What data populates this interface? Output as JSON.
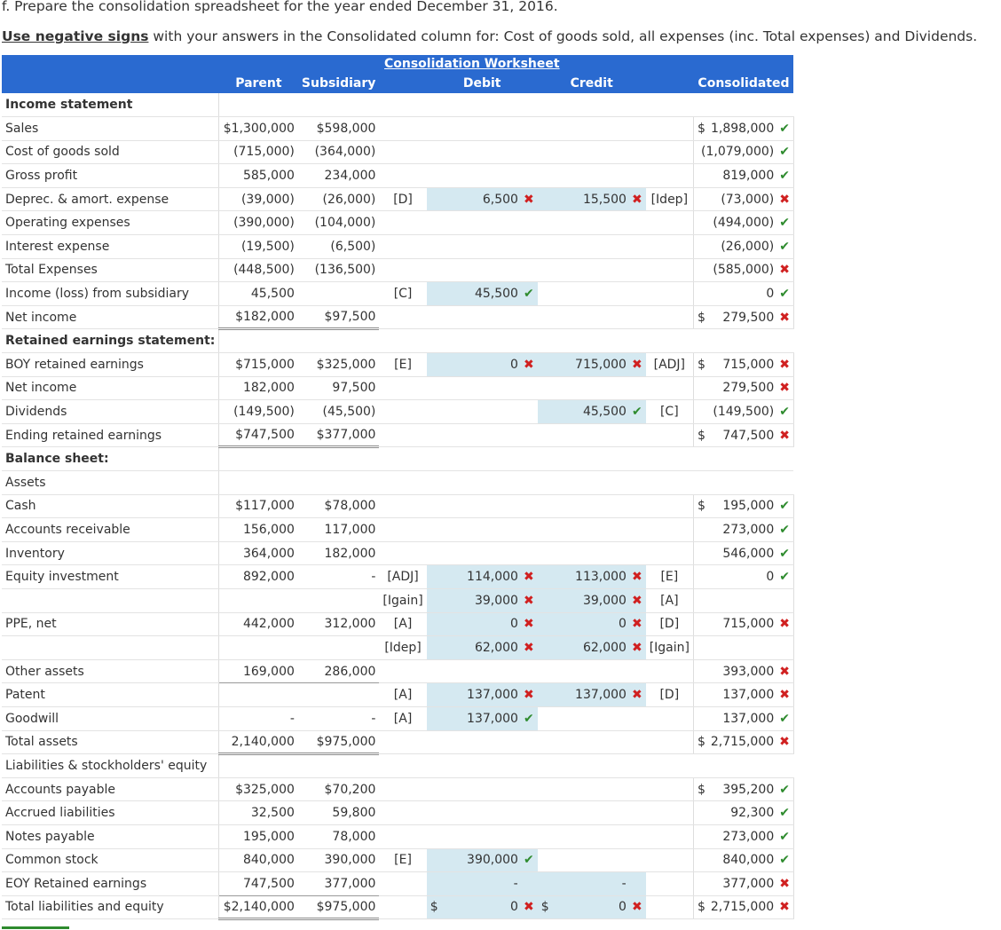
{
  "instructions": {
    "part": "f. Prepare the consolidation spreadsheet for the year ended December 31, 2016.",
    "emph": "Use negative signs",
    "rest": " with your answers in the Consolidated column for: Cost of goods sold, all expenses (inc. Total expenses) and Dividends."
  },
  "worksheet": {
    "title": "Consolidation Worksheet",
    "headers": {
      "parent": "Parent",
      "subsidiary": "Subsidiary",
      "debit": "Debit",
      "credit": "Credit",
      "consolidated": "Consolidated"
    },
    "colors": {
      "header": "#2a6ad0",
      "input": "#d5e9f1",
      "correct": "#2e8b2e",
      "incorrect": "#d02020"
    },
    "rows": [
      {
        "type": "section",
        "label": "Income statement",
        "bold": true
      },
      {
        "label": "Sales",
        "parent": "$1,300,000",
        "sub": "$598,000",
        "cons_dollar": "$",
        "cons": "1,898,000",
        "cons_mark": "ok"
      },
      {
        "label": "Cost of goods sold",
        "parent": "(715,000)",
        "sub": "(364,000)",
        "cons": "(1,079,000)",
        "cons_mark": "ok"
      },
      {
        "label": "Gross profit",
        "parent": "585,000",
        "sub": "234,000",
        "cons": "819,000",
        "cons_mark": "ok"
      },
      {
        "label": "Deprec. & amort. expense",
        "parent": "(39,000)",
        "sub": "(26,000)",
        "dref": "[D]",
        "debit": "6,500",
        "debit_mark": "bad",
        "credit": "15,500",
        "credit_mark": "bad",
        "cref": "[Idep]",
        "cons": "(73,000)",
        "cons_mark": "bad"
      },
      {
        "label": "Operating expenses",
        "parent": "(390,000)",
        "sub": "(104,000)",
        "cons": "(494,000)",
        "cons_mark": "ok"
      },
      {
        "label": "Interest expense",
        "parent": "(19,500)",
        "sub": "(6,500)",
        "cons": "(26,000)",
        "cons_mark": "ok"
      },
      {
        "label": "Total Expenses",
        "parent": "(448,500)",
        "sub": "(136,500)",
        "cons": "(585,000)",
        "cons_mark": "bad"
      },
      {
        "label": "Income (loss) from subsidiary",
        "parent": "45,500",
        "sub": "",
        "dref": "[C]",
        "debit": "45,500",
        "debit_mark": "ok",
        "cons": "0",
        "cons_mark": "ok"
      },
      {
        "label": "Net income",
        "parent": "$182,000",
        "sub": "$97,500",
        "dbl": true,
        "cons_dollar": "$",
        "cons": "279,500",
        "cons_mark": "bad"
      },
      {
        "type": "section",
        "label": "Retained earnings statement:",
        "bold": true
      },
      {
        "label": "BOY retained earnings",
        "parent": "$715,000",
        "sub": "$325,000",
        "dref": "[E]",
        "debit": "0",
        "debit_mark": "bad",
        "credit": "715,000",
        "credit_mark": "bad",
        "cref": "[ADJ]",
        "cons_dollar": "$",
        "cons": "715,000",
        "cons_mark": "bad"
      },
      {
        "label": "Net income",
        "parent": "182,000",
        "sub": "97,500",
        "cons": "279,500",
        "cons_mark": "bad"
      },
      {
        "label": "Dividends",
        "parent": "(149,500)",
        "sub": "(45,500)",
        "credit": "45,500",
        "credit_mark": "ok",
        "cref": "[C]",
        "cons": "(149,500)",
        "cons_mark": "ok"
      },
      {
        "label": "Ending retained earnings",
        "parent": "$747,500",
        "sub": "$377,000",
        "dbl": true,
        "cons_dollar": "$",
        "cons": "747,500",
        "cons_mark": "bad"
      },
      {
        "type": "section",
        "label": "Balance sheet:",
        "bold": true
      },
      {
        "type": "section",
        "label": "Assets",
        "bold": false
      },
      {
        "label": "Cash",
        "parent": "$117,000",
        "sub": "$78,000",
        "cons_dollar": "$",
        "cons": "195,000",
        "cons_mark": "ok"
      },
      {
        "label": "Accounts receivable",
        "parent": "156,000",
        "sub": "117,000",
        "cons": "273,000",
        "cons_mark": "ok"
      },
      {
        "label": "Inventory",
        "parent": "364,000",
        "sub": "182,000",
        "cons": "546,000",
        "cons_mark": "ok"
      },
      {
        "label": "Equity investment",
        "parent": "892,000",
        "sub": "-",
        "dref": "[ADJ]",
        "debit": "114,000",
        "debit_mark": "bad",
        "credit": "113,000",
        "credit_mark": "bad",
        "cref": "[E]",
        "cons": "0",
        "cons_mark": "ok"
      },
      {
        "label": "",
        "parent": "",
        "sub": "",
        "dref": "[Igain]",
        "debit": "39,000",
        "debit_mark": "bad",
        "credit": "39,000",
        "credit_mark": "bad",
        "cref": "[A]",
        "cons": "",
        "cons_mark": ""
      },
      {
        "label": "PPE, net",
        "parent": "442,000",
        "sub": "312,000",
        "dref": "[A]",
        "debit": "0",
        "debit_mark": "bad",
        "credit": "0",
        "credit_mark": "bad",
        "cref": "[D]",
        "cons": "715,000",
        "cons_mark": "bad"
      },
      {
        "label": "",
        "parent": "",
        "sub": "",
        "dref": "[Idep]",
        "debit": "62,000",
        "debit_mark": "bad",
        "credit": "62,000",
        "credit_mark": "bad",
        "cref": "[Igain]",
        "cons": "",
        "cons_mark": ""
      },
      {
        "label": "Other assets",
        "parent": "169,000",
        "sub": "286,000",
        "subtotal": true,
        "cons": "393,000",
        "cons_mark": "bad"
      },
      {
        "label": "Patent",
        "parent": "",
        "sub": "",
        "dref": "[A]",
        "debit": "137,000",
        "debit_mark": "bad",
        "credit": "137,000",
        "credit_mark": "bad",
        "cref": "[D]",
        "cons": "137,000",
        "cons_mark": "bad"
      },
      {
        "label": "Goodwill",
        "parent": "-",
        "sub": "-",
        "dref": "[A]",
        "debit": "137,000",
        "debit_mark": "ok",
        "cons": "137,000",
        "cons_mark": "ok"
      },
      {
        "label": "Total assets",
        "parent": "2,140,000",
        "sub": "$975,000",
        "dbl": true,
        "cons_dollar": "$",
        "cons": "2,715,000",
        "cons_mark": "bad",
        "cons_tight": true
      },
      {
        "type": "section",
        "label": "Liabilities & stockholders' equity",
        "bold": false
      },
      {
        "label": "Accounts payable",
        "parent": "$325,000",
        "sub": "$70,200",
        "cons_dollar": "$",
        "cons": "395,200",
        "cons_mark": "ok"
      },
      {
        "label": "Accrued liabilities",
        "parent": "32,500",
        "sub": "59,800",
        "cons": "92,300",
        "cons_mark": "ok"
      },
      {
        "label": "Notes payable",
        "parent": "195,000",
        "sub": "78,000",
        "cons": "273,000",
        "cons_mark": "ok"
      },
      {
        "label": "Common stock",
        "parent": "840,000",
        "sub": "390,000",
        "dref": "[E]",
        "debit": "390,000",
        "debit_mark": "ok",
        "cons": "840,000",
        "cons_mark": "ok"
      },
      {
        "label": "EOY Retained earnings",
        "parent": "747,500",
        "sub": "377,000",
        "subtotal": true,
        "debit": "-",
        "debit_mark": "",
        "credit": "-",
        "credit_mark": "",
        "cons": "377,000",
        "cons_mark": "bad"
      },
      {
        "label": "Total liabilities and equity",
        "parent": "$2,140,000",
        "sub": "$975,000",
        "dbl": true,
        "debit_dollar": "$",
        "debit": "0",
        "debit_mark": "bad",
        "credit_dollar": "$",
        "credit": "0",
        "credit_mark": "bad",
        "cons_dollar": "$",
        "cons": "2,715,000",
        "cons_mark": "bad",
        "cons_tight": true
      }
    ]
  }
}
